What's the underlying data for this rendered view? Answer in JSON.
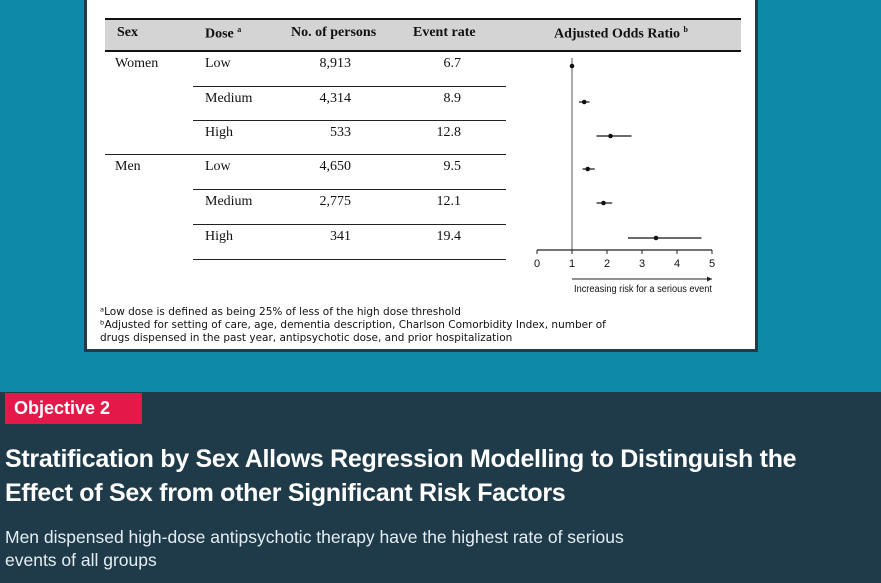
{
  "table": {
    "headers": {
      "sex": "Sex",
      "dose": "Dose",
      "dose_sup": "a",
      "persons": "No. of persons",
      "rate": "Event rate",
      "aor": "Adjusted Odds Ratio",
      "aor_sup": "b"
    },
    "groups": [
      {
        "sex": "Women",
        "rows": [
          {
            "dose": "Low",
            "persons": "8,913",
            "rate": "6.7"
          },
          {
            "dose": "Medium",
            "persons": "4,314",
            "rate": "8.9"
          },
          {
            "dose": "High",
            "persons": "533",
            "rate": "12.8"
          }
        ]
      },
      {
        "sex": "Men",
        "rows": [
          {
            "dose": "Low",
            "persons": "4,650",
            "rate": "9.5"
          },
          {
            "dose": "Medium",
            "persons": "2,775",
            "rate": "12.1"
          },
          {
            "dose": "High",
            "persons": "341",
            "rate": "19.4"
          }
        ]
      }
    ]
  },
  "chart_data": {
    "type": "scatter",
    "xlim": [
      0,
      5
    ],
    "x_ticks": [
      "0",
      "1",
      "2",
      "3",
      "4",
      "5"
    ],
    "reference_line": 1,
    "xlabel": "Increasing risk for a serious event",
    "points": [
      {
        "group": "Women",
        "dose": "Low",
        "or": 1.0,
        "lo": 1.0,
        "hi": 1.0
      },
      {
        "group": "Women",
        "dose": "Medium",
        "or": 1.35,
        "lo": 1.2,
        "hi": 1.5
      },
      {
        "group": "Women",
        "dose": "High",
        "or": 2.1,
        "lo": 1.7,
        "hi": 2.7
      },
      {
        "group": "Men",
        "dose": "Low",
        "or": 1.45,
        "lo": 1.3,
        "hi": 1.65
      },
      {
        "group": "Men",
        "dose": "Medium",
        "or": 1.9,
        "lo": 1.7,
        "hi": 2.15
      },
      {
        "group": "Men",
        "dose": "High",
        "or": 3.4,
        "lo": 2.6,
        "hi": 4.7
      }
    ]
  },
  "footnotes": {
    "a": "ᵃLow dose is defined as being 25% of less of the high dose threshold",
    "b1": "ᵇAdjusted for setting of care, age, dementia description, Charlson Comorbidity Index, number of",
    "b2": "drugs dispensed in the past year, antipsychotic dose, and prior hospitalization"
  },
  "badge": {
    "label": "Objective 2"
  },
  "headline": {
    "line1": "Stratification by Sex Allows Regression Modelling to Distinguish the",
    "line2": "Effect of Sex from other Significant Risk Factors"
  },
  "subhead": {
    "line1": "Men dispensed high-dose antipsychotic therapy have the highest rate of serious",
    "line2": "events of all groups"
  },
  "colors": {
    "background_top": "#0e8aa8",
    "background_bottom": "#1f3b4a",
    "badge": "#e4194a"
  }
}
